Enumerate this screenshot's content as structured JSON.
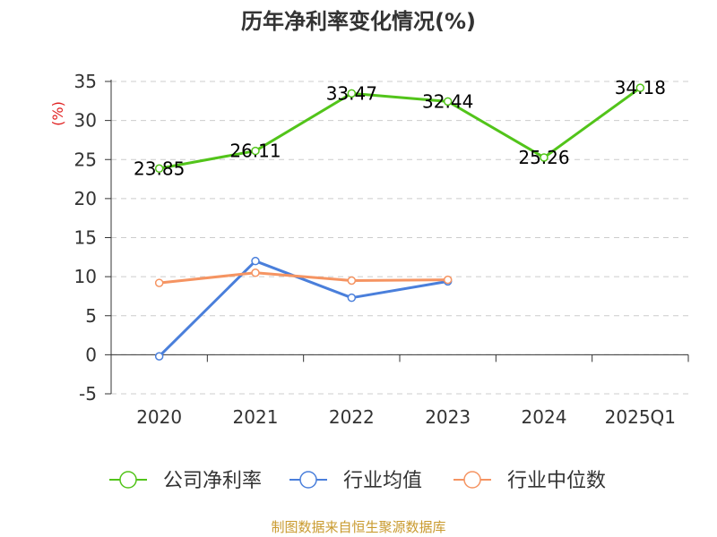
{
  "title": "历年净利率变化情况(%)",
  "source": "制图数据来自恒生聚源数据库",
  "chart_data": {
    "type": "line",
    "title": "历年净利率变化情况(%)",
    "ylabel": "(%)",
    "ylim": [
      -5,
      35
    ],
    "yticks": [
      -5,
      0,
      5,
      10,
      15,
      20,
      25,
      30,
      35
    ],
    "grid": true,
    "legend_position": "bottom",
    "categories": [
      "2020",
      "2021",
      "2022",
      "2023",
      "2024",
      "2025Q1"
    ],
    "series": [
      {
        "name": "公司净利率",
        "color": "#52c41a",
        "values": [
          23.85,
          26.11,
          33.47,
          32.44,
          25.26,
          34.18
        ],
        "labels": [
          "23.85",
          "26.11",
          "33.47",
          "32.44",
          "25.26",
          "34.18"
        ]
      },
      {
        "name": "行业均值",
        "color": "#4a7fdb",
        "values": [
          -0.2,
          12.0,
          7.3,
          9.4,
          null,
          null
        ]
      },
      {
        "name": "行业中位数",
        "color": "#f59462",
        "values": [
          9.2,
          10.5,
          9.5,
          9.6,
          null,
          null
        ]
      }
    ]
  }
}
